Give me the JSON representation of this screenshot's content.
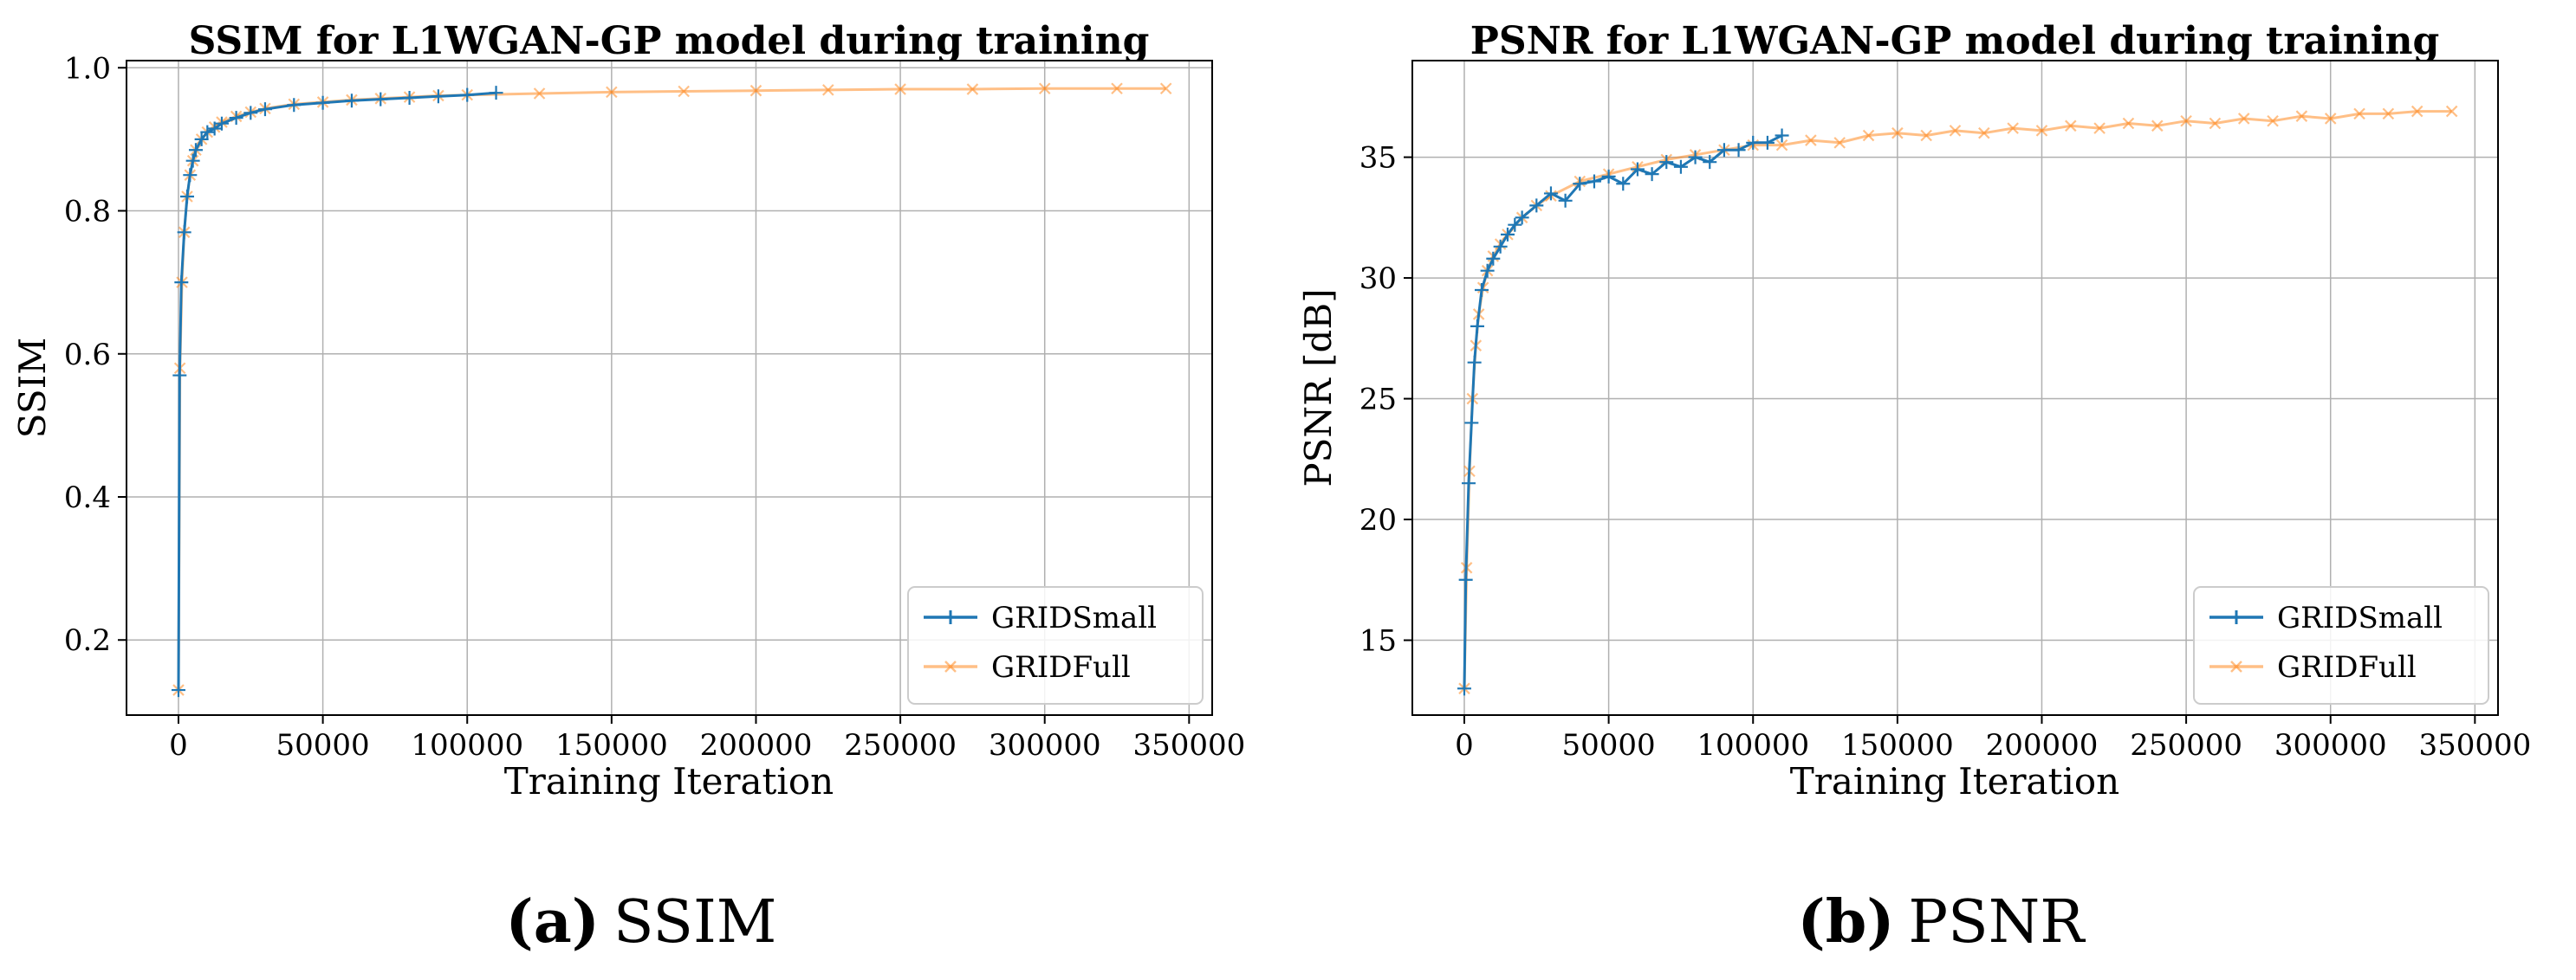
{
  "colors": {
    "small": "#1f77b4",
    "full": "#ff7f0e",
    "grid": "#b0b0b0",
    "axis": "#000000"
  },
  "chart_data": [
    {
      "type": "line",
      "title": "SSIM for L1WGAN-GP model during training",
      "xlabel": "Training Iteration",
      "ylabel": "SSIM",
      "xlim": [
        -18000,
        358000
      ],
      "ylim": [
        0.095,
        1.01
      ],
      "xticks": [
        0,
        50000,
        100000,
        150000,
        200000,
        250000,
        300000,
        350000
      ],
      "xtick_labels": [
        "0",
        "50000",
        "100000",
        "150000",
        "200000",
        "250000",
        "300000",
        "350000"
      ],
      "yticks": [
        0.2,
        0.4,
        0.6,
        0.8,
        1.0
      ],
      "ytick_labels": [
        "0.2",
        "0.4",
        "0.6",
        "0.8",
        "1.0"
      ],
      "grid": true,
      "legend": "lower-right",
      "series": [
        {
          "name": "GRIDSmall",
          "marker": "+",
          "x": [
            0,
            400,
            1000,
            2000,
            3000,
            4000,
            5000,
            6000,
            8000,
            10000,
            12500,
            15000,
            20000,
            25000,
            30000,
            40000,
            50000,
            60000,
            70000,
            80000,
            90000,
            100000,
            110000
          ],
          "y": [
            0.13,
            0.57,
            0.7,
            0.77,
            0.82,
            0.85,
            0.87,
            0.885,
            0.9,
            0.91,
            0.915,
            0.922,
            0.93,
            0.937,
            0.942,
            0.948,
            0.951,
            0.954,
            0.956,
            0.958,
            0.96,
            0.962,
            0.965
          ]
        },
        {
          "name": "GRIDFull",
          "marker": "x",
          "x": [
            0,
            500,
            1200,
            2000,
            3000,
            4000,
            5000,
            6000,
            8000,
            10000,
            12500,
            15000,
            20000,
            25000,
            30000,
            40000,
            50000,
            60000,
            70000,
            80000,
            90000,
            100000,
            125000,
            150000,
            175000,
            200000,
            225000,
            250000,
            275000,
            300000,
            325000,
            342000
          ],
          "y": [
            0.13,
            0.58,
            0.7,
            0.77,
            0.82,
            0.85,
            0.87,
            0.885,
            0.9,
            0.91,
            0.917,
            0.924,
            0.932,
            0.938,
            0.943,
            0.949,
            0.952,
            0.955,
            0.957,
            0.959,
            0.961,
            0.962,
            0.964,
            0.966,
            0.967,
            0.968,
            0.969,
            0.97,
            0.97,
            0.971,
            0.971,
            0.971
          ]
        }
      ]
    },
    {
      "type": "line",
      "title": "PSNR for L1WGAN-GP model during training",
      "xlabel": "Training Iteration",
      "ylabel": "PSNR [dB]",
      "xlim": [
        -18000,
        358000
      ],
      "ylim": [
        11.9,
        39.0
      ],
      "xticks": [
        0,
        50000,
        100000,
        150000,
        200000,
        250000,
        300000,
        350000
      ],
      "xtick_labels": [
        "0",
        "50000",
        "100000",
        "150000",
        "200000",
        "250000",
        "300000",
        "350000"
      ],
      "yticks": [
        15,
        20,
        25,
        30,
        35
      ],
      "ytick_labels": [
        "15",
        "20",
        "25",
        "30",
        "35"
      ],
      "grid": true,
      "legend": "lower-right",
      "series": [
        {
          "name": "GRIDSmall",
          "marker": "+",
          "x": [
            0,
            500,
            1500,
            2500,
            3500,
            4500,
            6000,
            8000,
            10000,
            12500,
            15000,
            17500,
            20000,
            25000,
            30000,
            35000,
            40000,
            45000,
            50000,
            55000,
            60000,
            65000,
            70000,
            75000,
            80000,
            85000,
            90000,
            95000,
            100000,
            105000,
            110000
          ],
          "y": [
            13.0,
            17.5,
            21.5,
            24.0,
            26.5,
            28.0,
            29.5,
            30.3,
            30.8,
            31.3,
            31.8,
            32.2,
            32.5,
            33.0,
            33.5,
            33.2,
            33.9,
            34.0,
            34.2,
            33.9,
            34.5,
            34.3,
            34.8,
            34.6,
            35.0,
            34.8,
            35.3,
            35.3,
            35.6,
            35.6,
            35.9
          ]
        },
        {
          "name": "GRIDFull",
          "marker": "x",
          "x": [
            0,
            800,
            1800,
            2800,
            4000,
            5000,
            6500,
            8000,
            10000,
            12500,
            15000,
            20000,
            25000,
            30000,
            40000,
            50000,
            60000,
            70000,
            80000,
            90000,
            100000,
            110000,
            120000,
            130000,
            140000,
            150000,
            160000,
            170000,
            180000,
            190000,
            200000,
            210000,
            220000,
            230000,
            240000,
            250000,
            260000,
            270000,
            280000,
            290000,
            300000,
            310000,
            320000,
            330000,
            342000
          ],
          "y": [
            13.0,
            18.0,
            22.0,
            25.0,
            27.2,
            28.5,
            29.6,
            30.3,
            30.9,
            31.4,
            31.8,
            32.5,
            33.0,
            33.4,
            34.0,
            34.3,
            34.6,
            34.9,
            35.1,
            35.3,
            35.5,
            35.5,
            35.7,
            35.6,
            35.9,
            36.0,
            35.9,
            36.1,
            36.0,
            36.2,
            36.1,
            36.3,
            36.2,
            36.4,
            36.3,
            36.5,
            36.4,
            36.6,
            36.5,
            36.7,
            36.6,
            36.8,
            36.8,
            36.9,
            36.9
          ]
        }
      ]
    }
  ],
  "captions": [
    {
      "letter": "(a)",
      "text": "SSIM"
    },
    {
      "letter": "(b)",
      "text": "PSNR"
    }
  ]
}
